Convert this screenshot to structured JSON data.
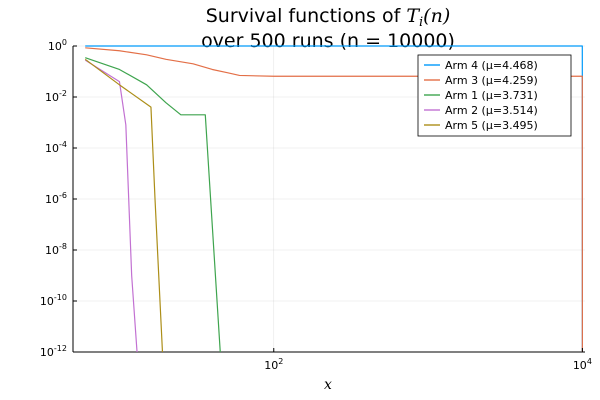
{
  "chart_data": {
    "type": "line",
    "title_line1": "Survival functions of ",
    "title_math": "T",
    "title_math_sub": "i",
    "title_math_arg": "(n)",
    "title_line2": "over 500 runs (n = 10000)",
    "xlabel": "x",
    "ylabel": "",
    "xscale": "log",
    "yscale": "log",
    "xlim": [
      5,
      10400
    ],
    "ylim": [
      1e-12,
      1
    ],
    "grid": true,
    "legend_position": "top-right",
    "x_ticks": [
      {
        "value": 100,
        "base": "10",
        "exp": "2"
      },
      {
        "value": 10000,
        "base": "10",
        "exp": "4"
      }
    ],
    "y_ticks": [
      {
        "value": 1,
        "base": "10",
        "exp": "0"
      },
      {
        "value": 0.01,
        "base": "10",
        "exp": "-2"
      },
      {
        "value": 0.0001,
        "base": "10",
        "exp": "-4"
      },
      {
        "value": 1e-06,
        "base": "10",
        "exp": "-6"
      },
      {
        "value": 1e-08,
        "base": "10",
        "exp": "-8"
      },
      {
        "value": 1e-10,
        "base": "10",
        "exp": "-10"
      },
      {
        "value": 1e-12,
        "base": "10",
        "exp": "-12"
      }
    ],
    "series": [
      {
        "name": "Arm 4 (μ=4.468)",
        "color": "#009AFA",
        "points": [
          [
            6,
            1
          ],
          [
            50,
            1
          ],
          [
            500,
            1
          ],
          [
            5000,
            1
          ],
          [
            9800,
            1
          ],
          [
            9990,
            1
          ],
          [
            10000,
            1e-12
          ]
        ]
      },
      {
        "name": "Arm 3 (μ=4.259)",
        "color": "#E36F47",
        "points": [
          [
            6,
            0.85
          ],
          [
            10,
            0.65
          ],
          [
            15,
            0.45
          ],
          [
            20,
            0.3
          ],
          [
            30,
            0.2
          ],
          [
            40,
            0.12
          ],
          [
            50,
            0.09
          ],
          [
            60,
            0.07
          ],
          [
            100,
            0.065
          ],
          [
            1000,
            0.065
          ],
          [
            9990,
            0.065
          ],
          [
            10000,
            1e-12
          ]
        ]
      },
      {
        "name": "Arm 1 (μ=3.731)",
        "color": "#3EA44E",
        "points": [
          [
            6,
            0.35
          ],
          [
            10,
            0.12
          ],
          [
            15,
            0.03
          ],
          [
            20,
            0.006
          ],
          [
            25,
            0.002
          ],
          [
            30,
            0.002
          ],
          [
            36,
            0.002
          ],
          [
            45,
            1e-12
          ]
        ]
      },
      {
        "name": "Arm 2 (μ=3.514)",
        "color": "#C271D2",
        "points": [
          [
            6,
            0.28
          ],
          [
            10,
            0.04
          ],
          [
            11,
            0.0008
          ],
          [
            12,
            1e-09
          ],
          [
            13,
            1e-12
          ]
        ]
      },
      {
        "name": "Arm 5 (μ=3.495)",
        "color": "#AC8E18",
        "points": [
          [
            6,
            0.3
          ],
          [
            10,
            0.03
          ],
          [
            16,
            0.004
          ],
          [
            17,
            1e-06
          ],
          [
            19,
            1e-12
          ]
        ]
      }
    ]
  }
}
